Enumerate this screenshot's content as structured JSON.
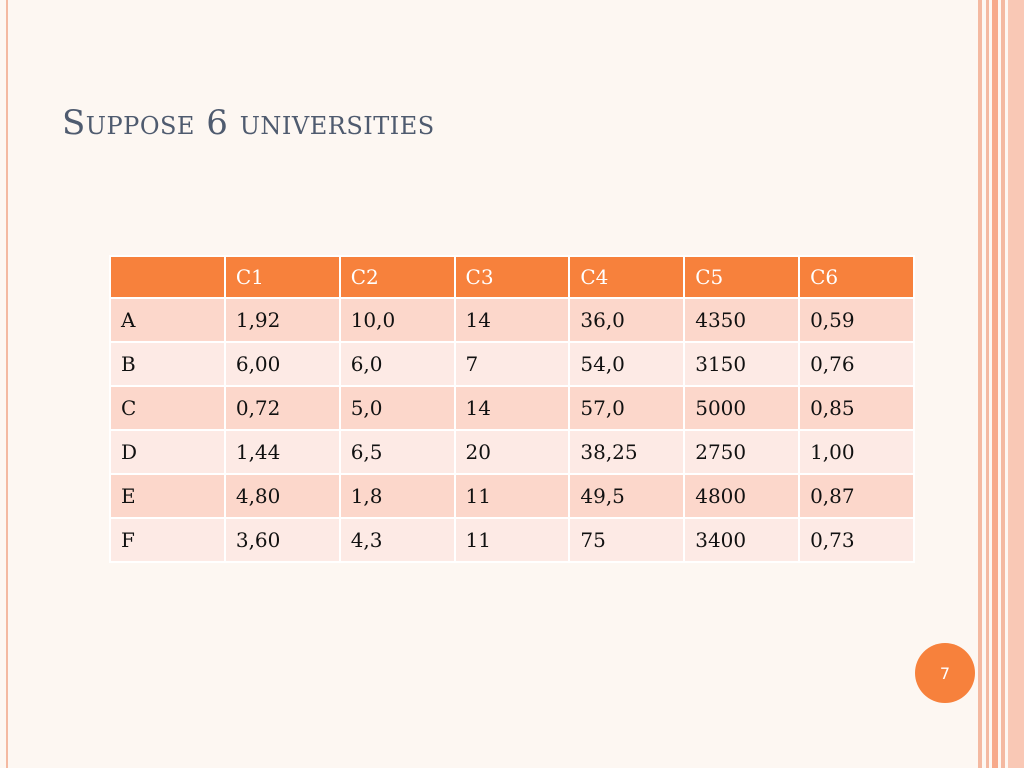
{
  "slide": {
    "title": "Suppose 6 universities",
    "page_number": "7"
  },
  "table": {
    "headers": [
      "",
      "C1",
      "C2",
      "C3",
      "C4",
      "C5",
      "C6"
    ],
    "rows": [
      [
        "A",
        "1,92",
        "10,0",
        "14",
        "36,0",
        "4350",
        "0,59"
      ],
      [
        "B",
        "6,00",
        "6,0",
        "7",
        "54,0",
        "3150",
        "0,76"
      ],
      [
        "C",
        "0,72",
        "5,0",
        "14",
        "57,0",
        "5000",
        "0,85"
      ],
      [
        "D",
        "1,44",
        "6,5",
        "20",
        "38,25",
        "2750",
        "1,00"
      ],
      [
        "E",
        "4,80",
        "1,8",
        "11",
        "49,5",
        "4800",
        "0,87"
      ],
      [
        "F",
        "3,60",
        "4,3",
        "11",
        "75",
        "3400",
        "0,73"
      ]
    ]
  },
  "colors": {
    "accent": "#f7813c",
    "title": "#4f5b6f",
    "row_dark": "#fcd7cb",
    "row_light": "#fdeae5",
    "background": "#fdf7f2"
  }
}
